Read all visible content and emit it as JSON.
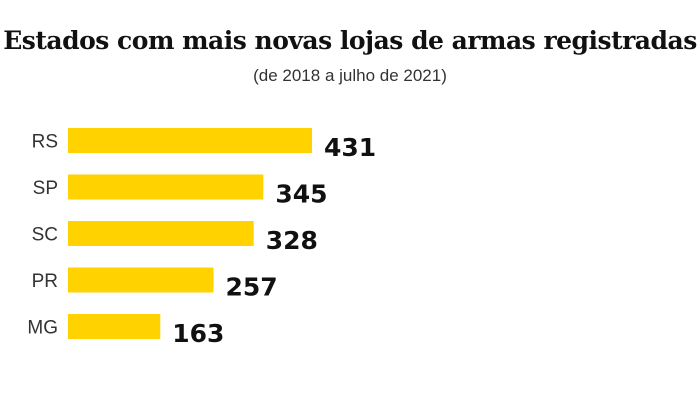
{
  "chart_data": {
    "type": "bar",
    "orientation": "horizontal",
    "title": "Estados com mais novas lojas de armas registradas",
    "subtitle": "(de 2018 a julho de 2021)",
    "categories": [
      "RS",
      "SP",
      "SC",
      "PR",
      "MG"
    ],
    "values": [
      431,
      345,
      328,
      257,
      163
    ],
    "bar_color": "#FFD200",
    "xlim": [
      0,
      431
    ],
    "grid": false,
    "legend": "none"
  }
}
